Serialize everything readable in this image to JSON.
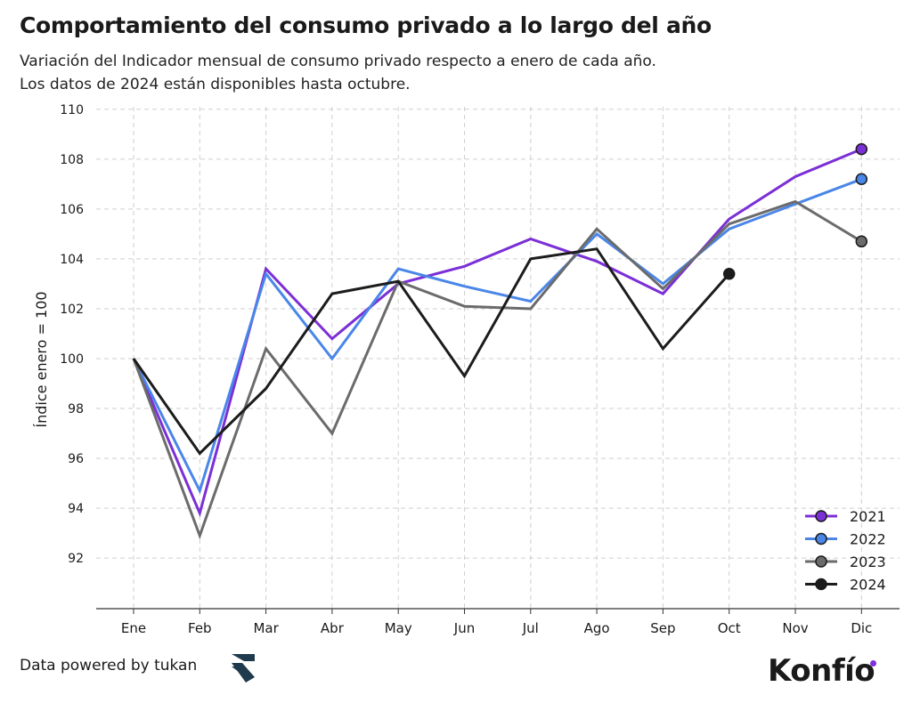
{
  "header": {
    "title": "Comportamiento del consumo privado a lo largo del año",
    "subtitle_line1": "Variación del Indicador mensual de consumo privado respecto a enero de cada año.",
    "subtitle_line2": "Los datos de 2024 están disponibles hasta octubre."
  },
  "footer": {
    "source": "Data powered by tukan",
    "brand": "Konfío"
  },
  "chart_data": {
    "type": "line",
    "ylabel": "Índice enero = 100",
    "xlabel": "",
    "ylim": [
      90,
      110
    ],
    "yticks": [
      92,
      94,
      96,
      98,
      100,
      102,
      104,
      106,
      108,
      110
    ],
    "grid": true,
    "legend_position": "bottom-right",
    "categories": [
      "Ene",
      "Feb",
      "Mar",
      "Abr",
      "May",
      "Jun",
      "Jul",
      "Ago",
      "Sep",
      "Oct",
      "Nov",
      "Dic"
    ],
    "series": [
      {
        "name": "2021",
        "color": "#7b2fd6",
        "values": [
          100,
          93.8,
          103.6,
          100.8,
          103.0,
          103.7,
          104.8,
          103.9,
          102.6,
          105.6,
          107.3,
          108.4
        ]
      },
      {
        "name": "2022",
        "color": "#4a86e8",
        "values": [
          100,
          94.7,
          103.4,
          100.0,
          103.6,
          102.9,
          102.3,
          105.0,
          103.0,
          105.2,
          106.2,
          107.2
        ]
      },
      {
        "name": "2023",
        "color": "#6b6b6b",
        "values": [
          100,
          92.9,
          100.4,
          97.0,
          103.1,
          102.1,
          102.0,
          105.2,
          102.8,
          105.4,
          106.3,
          104.7
        ]
      },
      {
        "name": "2024",
        "color": "#1c1c1c",
        "values": [
          100,
          96.2,
          98.8,
          102.6,
          103.1,
          99.3,
          104.0,
          104.4,
          100.4,
          103.4,
          null,
          null
        ]
      }
    ]
  }
}
